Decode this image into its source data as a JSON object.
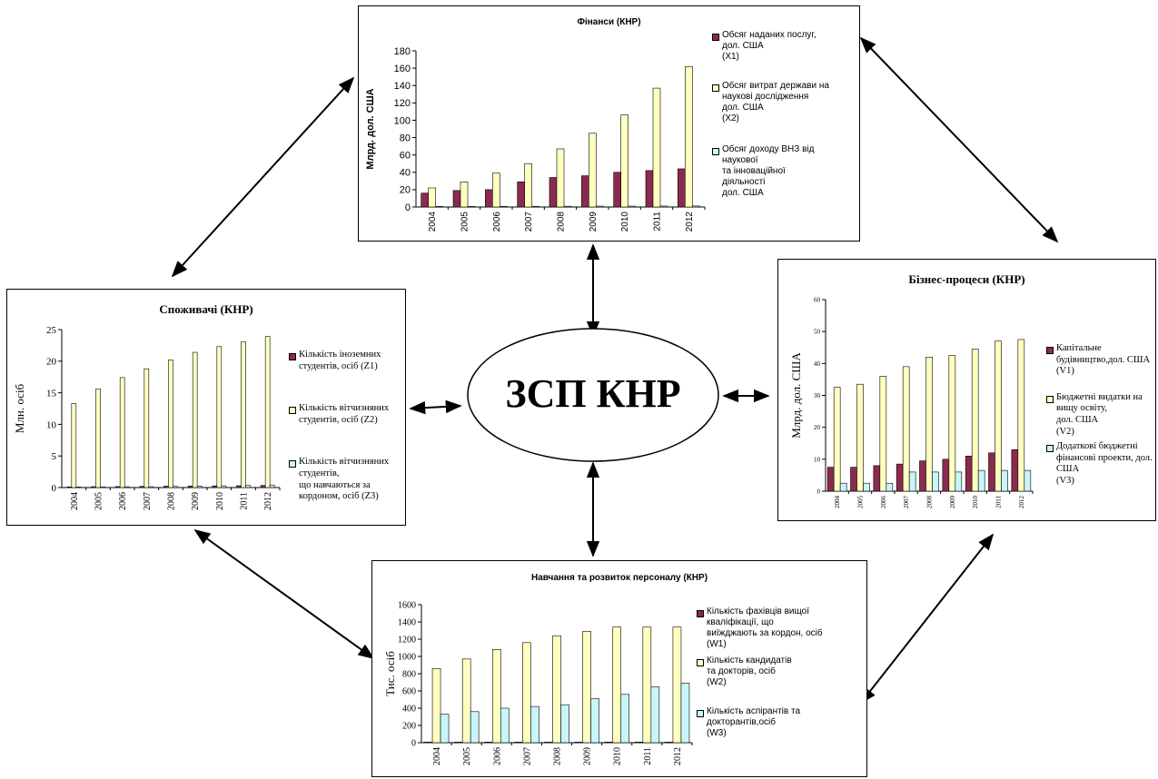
{
  "center": {
    "label": "ЗСП КНР"
  },
  "colors": {
    "series1": "#8c2a4e",
    "series2": "#ffffc0",
    "series3": "#c8f5f8",
    "stroke": "#000000"
  },
  "finance": {
    "title": "Фінанси (КНР)",
    "ylabel": "Млрд. дол. США",
    "legend": [
      {
        "label": "Обсяг наданих послуг,\n дол. США\n(Х1)"
      },
      {
        "label": "Обсяг витрат держави на\nнаукові дослідження\nдол. США\n(Х2)"
      },
      {
        "label": "Обсяг доходу ВНЗ від\nнаукової\n та інноваційної\nдіяльності\nдол. США"
      }
    ]
  },
  "consumers": {
    "title": "Споживачі (КНР)",
    "ylabel": "Млн. осіб",
    "legend": [
      {
        "label": "Кількість іноземних\nстудентів, осіб (Z1)"
      },
      {
        "label": "Кількість вітчизняних\nстудентів, осіб (Z2)"
      },
      {
        "label": "Кількість вітчизняних\nстудентів,\nщо навчаються за\nкордоном, осіб (Z3)"
      }
    ]
  },
  "business": {
    "title": "Бізнес-процеси (КНР)",
    "ylabel": "Млрд. дол. США",
    "legend": [
      {
        "label": "Капітальне\nбудівництво,дол. США\n (V1)"
      },
      {
        "label": "Бюджетні видатки на\nвищу освіту,\nдол. США\n (V2)"
      },
      {
        "label": "Додаткові бюджетні\nфінансові проекти, дол.\nСША\n (V3)"
      }
    ]
  },
  "training": {
    "title": "Навчання та розвиток персоналу (КНР)",
    "ylabel": "Тис. осіб",
    "legend": [
      {
        "label": "Кількість фахівців вищої\nкваліфікації, що\nвиїжджають за кордон, осіб\n(W1)"
      },
      {
        "label": "Кількість кандидатів\n та докторів, осіб\n(W2)"
      },
      {
        "label": "Кількість аспірантів та\nдокторантів,осіб\n(W3)"
      }
    ]
  },
  "chart_data": [
    {
      "id": "finance",
      "type": "bar",
      "title": "Фінанси (КНР)",
      "ylabel": "Млрд. дол. США",
      "ylim": [
        0,
        180
      ],
      "yticks": [
        0,
        20,
        40,
        60,
        80,
        100,
        120,
        140,
        160,
        180
      ],
      "categories": [
        "2004",
        "2005",
        "2006",
        "2007",
        "2008",
        "2009",
        "2010",
        "2011",
        "2012"
      ],
      "series": [
        {
          "name": "Обсяг наданих послуг, дол. США (Х1)",
          "values": [
            16,
            19,
            20,
            29,
            34,
            36,
            40,
            42,
            44
          ]
        },
        {
          "name": "Обсяг витрат держави на наукові дослідження дол. США (Х2)",
          "values": [
            22,
            29,
            39,
            50,
            67,
            85,
            106,
            137,
            162
          ]
        },
        {
          "name": "Обсяг доходу ВНЗ від наукової та інноваційної діяльності дол. США",
          "values": [
            0.5,
            0.6,
            0.7,
            0.8,
            0.9,
            1,
            1,
            1.1,
            1.2
          ]
        }
      ]
    },
    {
      "id": "consumers",
      "type": "bar",
      "title": "Споживачі (КНР)",
      "ylabel": "Млн. осіб",
      "ylim": [
        0,
        25
      ],
      "yticks": [
        0,
        5,
        10,
        15,
        20,
        25
      ],
      "categories": [
        "2004",
        "2005",
        "2006",
        "2007",
        "2008",
        "2009",
        "2010",
        "2011",
        "2012"
      ],
      "series": [
        {
          "name": "Кількість іноземних студентів, осіб (Z1)",
          "values": [
            0.1,
            0.14,
            0.16,
            0.19,
            0.22,
            0.24,
            0.27,
            0.29,
            0.33
          ]
        },
        {
          "name": "Кількість вітчизняних студентів, осіб (Z2)",
          "values": [
            13.3,
            15.6,
            17.4,
            18.8,
            20.2,
            21.4,
            22.3,
            23.1,
            23.9
          ]
        },
        {
          "name": "Кількість вітчизняних студентів, що навчаються за кордоном, осіб (Z3)",
          "values": [
            0.1,
            0.12,
            0.13,
            0.14,
            0.18,
            0.23,
            0.28,
            0.34,
            0.4
          ]
        }
      ]
    },
    {
      "id": "business",
      "type": "bar",
      "title": "Бізнес-процеси (КНР)",
      "ylabel": "Млрд. дол. США",
      "ylim": [
        0,
        60
      ],
      "yticks": [
        0,
        10,
        20,
        30,
        40,
        50,
        60
      ],
      "categories": [
        "2004",
        "2005",
        "2006",
        "2007",
        "2008",
        "2009",
        "2010",
        "2011",
        "2012"
      ],
      "series": [
        {
          "name": "Капітальне будівництво,дол. США (V1)",
          "values": [
            7.5,
            7.5,
            8,
            8.5,
            9.5,
            10,
            11,
            12,
            13
          ]
        },
        {
          "name": "Бюджетні видатки на вищу освіту, дол. США (V2)",
          "values": [
            32.5,
            33.5,
            36,
            39,
            42,
            42.5,
            44.5,
            47,
            47.5
          ]
        },
        {
          "name": "Додаткові бюджетні фінансові проекти, дол. США (V3)",
          "values": [
            2.5,
            2.5,
            2.5,
            6,
            6,
            6,
            6.5,
            6.5,
            6.5
          ]
        }
      ]
    },
    {
      "id": "training",
      "type": "bar",
      "title": "Навчання та розвиток персоналу (КНР)",
      "ylabel": "Тис. осіб",
      "ylim": [
        0,
        1600
      ],
      "yticks": [
        0,
        200,
        400,
        600,
        800,
        1000,
        1200,
        1400,
        1600
      ],
      "categories": [
        "2004",
        "2005",
        "2006",
        "2007",
        "2008",
        "2009",
        "2010",
        "2011",
        "2012"
      ],
      "series": [
        {
          "name": "Кількість фахівців вищої кваліфікації, що виїжджають за кордон, осіб (W1)",
          "values": [
            2,
            2,
            2,
            2,
            2,
            2,
            2,
            2,
            2
          ]
        },
        {
          "name": "Кількість кандидатів та докторів, осіб (W2)",
          "values": [
            860,
            970,
            1080,
            1160,
            1240,
            1290,
            1340,
            1340,
            1340
          ]
        },
        {
          "name": "Кількість аспірантів та докторантів,осіб (W3)",
          "values": [
            330,
            360,
            400,
            420,
            440,
            510,
            560,
            650,
            690
          ]
        }
      ]
    }
  ]
}
